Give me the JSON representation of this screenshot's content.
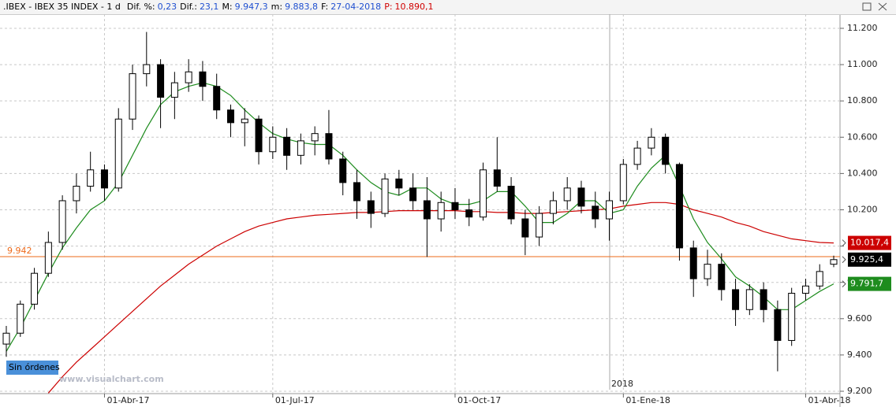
{
  "header": {
    "symbol": ".IBEX - IBEX 35 INDEX - 1 d",
    "fields": [
      {
        "label": "Dif. %:",
        "value": "0,23"
      },
      {
        "label": "Dif.:",
        "value": "23,1"
      },
      {
        "label": "M:",
        "value": "9.947,3"
      },
      {
        "label": "m:",
        "value": "9.883,8"
      },
      {
        "label": "F:",
        "value": "27-04-2018"
      },
      {
        "label": "P:",
        "value": "10.890,1"
      }
    ]
  },
  "status_button": "Sin órdenes",
  "watermark": "www.visualchart.com",
  "chart_data": {
    "type": "candlestick",
    "categories": [
      null,
      null,
      null,
      null,
      null,
      null,
      null,
      "01-Abr-17",
      null,
      null,
      null,
      null,
      null,
      null,
      null,
      null,
      null,
      null,
      null,
      "01-Jul-17",
      null,
      null,
      null,
      null,
      null,
      null,
      null,
      null,
      null,
      null,
      null,
      null,
      "01-Oct-17",
      null,
      null,
      null,
      null,
      null,
      null,
      null,
      null,
      null,
      null,
      null,
      "01-Ene-18",
      null,
      null,
      null,
      null,
      null,
      null,
      null,
      null,
      null,
      null,
      null,
      null,
      "01-Abr-18",
      null,
      null
    ],
    "year_marker": "2018",
    "ylim": [
      9187,
      11278
    ],
    "yticks": [
      {
        "value": 9200,
        "label": "9.200"
      },
      {
        "value": 9400,
        "label": "9.400"
      },
      {
        "value": 9600,
        "label": "9.600"
      },
      {
        "value": 9800,
        "label": "9.800"
      },
      {
        "value": 10000,
        "label": "10.000"
      },
      {
        "value": 10200,
        "label": "10.200"
      },
      {
        "value": 10400,
        "label": "10.400"
      },
      {
        "value": 10600,
        "label": "10.600"
      },
      {
        "value": 10800,
        "label": "10.800"
      },
      {
        "value": 11000,
        "label": "11.000"
      },
      {
        "value": 11200,
        "label": "11.200"
      }
    ],
    "grid": true,
    "hline": {
      "value": 9942,
      "label": "9.942",
      "color": "#ee6a1a"
    },
    "candles": {
      "color": "#000000",
      "open": [
        9460,
        9520,
        9680,
        9850,
        10020,
        10250,
        10330,
        10420,
        10320,
        10700,
        10950,
        11000,
        10820,
        10900,
        10960,
        10880,
        10750,
        10680,
        10700,
        10520,
        10600,
        10500,
        10580,
        10620,
        10480,
        10350,
        10250,
        10180,
        10370,
        10320,
        10250,
        10150,
        10240,
        10200,
        10160,
        10420,
        10330,
        10150,
        10050,
        10180,
        10250,
        10320,
        10220,
        10150,
        10250,
        10450,
        10540,
        10600,
        10450,
        9990,
        9820,
        9900,
        9760,
        9650,
        9760,
        9650,
        9480,
        9740,
        9780,
        9900
      ],
      "high": [
        9560,
        9700,
        9880,
        10080,
        10280,
        10400,
        10520,
        10450,
        10760,
        11000,
        11180,
        11030,
        10960,
        11030,
        11020,
        10950,
        10780,
        10760,
        10720,
        10660,
        10650,
        10620,
        10660,
        10750,
        10520,
        10420,
        10300,
        10400,
        10420,
        10400,
        10380,
        10300,
        10320,
        10260,
        10460,
        10600,
        10380,
        10200,
        10220,
        10300,
        10380,
        10360,
        10300,
        10300,
        10480,
        10580,
        10650,
        10620,
        10460,
        10030,
        9980,
        9960,
        9820,
        9790,
        9800,
        9700,
        9770,
        9820,
        9900,
        9947.3
      ],
      "low": [
        9390,
        9500,
        9650,
        9830,
        9980,
        10180,
        10300,
        10250,
        10300,
        10640,
        10880,
        10650,
        10700,
        10850,
        10800,
        10700,
        10600,
        10550,
        10450,
        10480,
        10420,
        10450,
        10500,
        10450,
        10280,
        10150,
        10100,
        10160,
        10280,
        10200,
        9940,
        10080,
        10150,
        10110,
        10140,
        10300,
        10120,
        9950,
        10000,
        10120,
        10200,
        10180,
        10100,
        10030,
        10230,
        10420,
        10500,
        10400,
        9920,
        9720,
        9780,
        9700,
        9560,
        9620,
        9580,
        9310,
        9450,
        9700,
        9760,
        9883.8
      ],
      "close": [
        9520,
        9680,
        9850,
        10020,
        10250,
        10330,
        10420,
        10320,
        10700,
        10950,
        11000,
        10820,
        10900,
        10960,
        10880,
        10750,
        10680,
        10700,
        10520,
        10600,
        10500,
        10580,
        10620,
        10480,
        10350,
        10250,
        10180,
        10370,
        10320,
        10250,
        10150,
        10240,
        10200,
        10160,
        10420,
        10330,
        10150,
        10050,
        10180,
        10250,
        10320,
        10220,
        10150,
        10250,
        10450,
        10540,
        10600,
        10450,
        9990,
        9820,
        9900,
        9760,
        9650,
        9760,
        9650,
        9480,
        9740,
        9780,
        9860,
        9925.4
      ],
      "value_labels": [
        null,
        null,
        null,
        null,
        null,
        null,
        null,
        null,
        null,
        null,
        null,
        null,
        null,
        null,
        null,
        null,
        null,
        null,
        null,
        null,
        null,
        null,
        null,
        null,
        null,
        null,
        null,
        null,
        null,
        null,
        null,
        null,
        null,
        null,
        null,
        null,
        null,
        null,
        null,
        null,
        null,
        null,
        null,
        null,
        null,
        null,
        null,
        null,
        null,
        null,
        null,
        null,
        null,
        null,
        null,
        null,
        null,
        null,
        null,
        "9.925,4"
      ]
    },
    "series": [
      {
        "color": "#cc0000",
        "values": [
          null,
          null,
          null,
          9190,
          9280,
          9360,
          9430,
          9500,
          9570,
          9640,
          9710,
          9780,
          9840,
          9900,
          9950,
          10000,
          10040,
          10080,
          10110,
          10130,
          10150,
          10160,
          10170,
          10175,
          10180,
          10185,
          10185,
          10190,
          10195,
          10195,
          10195,
          10195,
          10195,
          10190,
          10190,
          10185,
          10185,
          10180,
          10180,
          10185,
          10190,
          10195,
          10200,
          10205,
          10220,
          10230,
          10240,
          10240,
          10230,
          10200,
          10180,
          10160,
          10130,
          10110,
          10080,
          10060,
          10040,
          10030,
          10020,
          10017.4
        ],
        "value_labels": [
          null,
          null,
          null,
          null,
          null,
          null,
          null,
          null,
          null,
          null,
          null,
          null,
          null,
          null,
          null,
          null,
          null,
          null,
          null,
          null,
          null,
          null,
          null,
          null,
          null,
          null,
          null,
          null,
          null,
          null,
          null,
          null,
          null,
          null,
          null,
          null,
          null,
          null,
          null,
          null,
          null,
          null,
          null,
          null,
          null,
          null,
          null,
          null,
          null,
          null,
          null,
          null,
          null,
          null,
          null,
          null,
          null,
          null,
          null,
          "10.017,4"
        ]
      },
      {
        "color": "#1e8c1e",
        "values": [
          9420,
          9550,
          9700,
          9850,
          9990,
          10100,
          10200,
          10250,
          10350,
          10500,
          10650,
          10780,
          10850,
          10880,
          10900,
          10880,
          10830,
          10750,
          10680,
          10620,
          10590,
          10570,
          10560,
          10560,
          10500,
          10420,
          10350,
          10300,
          10280,
          10320,
          10320,
          10260,
          10230,
          10230,
          10250,
          10300,
          10300,
          10220,
          10130,
          10130,
          10180,
          10250,
          10250,
          10180,
          10200,
          10330,
          10430,
          10500,
          10330,
          10150,
          10020,
          9930,
          9830,
          9780,
          9720,
          9650,
          9650,
          9700,
          9750,
          9791.7
        ],
        "value_labels": [
          null,
          null,
          null,
          null,
          null,
          null,
          null,
          null,
          null,
          null,
          null,
          null,
          null,
          null,
          null,
          null,
          null,
          null,
          null,
          null,
          null,
          null,
          null,
          null,
          null,
          null,
          null,
          null,
          null,
          null,
          null,
          null,
          null,
          null,
          null,
          null,
          null,
          null,
          null,
          null,
          null,
          null,
          null,
          null,
          null,
          null,
          null,
          null,
          null,
          null,
          null,
          null,
          null,
          null,
          null,
          null,
          null,
          null,
          null,
          "9.791,7"
        ]
      }
    ]
  }
}
